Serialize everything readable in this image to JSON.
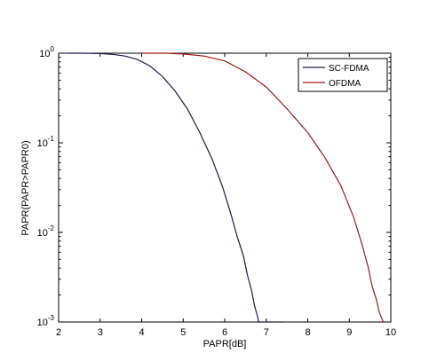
{
  "chart_data": {
    "type": "line",
    "title": "",
    "xlabel": "PAPR[dB]",
    "ylabel": "PAPR(PAPR>PAPR0)",
    "xlim": [
      2,
      10
    ],
    "ylim": [
      0.001,
      1
    ],
    "yscale": "log",
    "grid": false,
    "legend_position": "top-right",
    "x_ticks": [
      "2",
      "3",
      "4",
      "5",
      "6",
      "7",
      "8",
      "9",
      "10"
    ],
    "y_ticks": [
      {
        "value": 1,
        "base": "10",
        "exp": "0"
      },
      {
        "value": 0.1,
        "base": "10",
        "exp": "-1"
      },
      {
        "value": 0.01,
        "base": "10",
        "exp": "-2"
      },
      {
        "value": 0.001,
        "base": "10",
        "exp": "-3"
      }
    ],
    "series": [
      {
        "name": "SC-FDMA",
        "color": "#1a1a4a",
        "points": [
          [
            2.2,
            1.0
          ],
          [
            2.6,
            1.0
          ],
          [
            3.0,
            0.99
          ],
          [
            3.3,
            0.97
          ],
          [
            3.6,
            0.93
          ],
          [
            3.9,
            0.85
          ],
          [
            4.2,
            0.72
          ],
          [
            4.5,
            0.55
          ],
          [
            4.8,
            0.38
          ],
          [
            5.1,
            0.24
          ],
          [
            5.4,
            0.13
          ],
          [
            5.7,
            0.065
          ],
          [
            5.95,
            0.032
          ],
          [
            6.15,
            0.016
          ],
          [
            6.3,
            0.009
          ],
          [
            6.45,
            0.0055
          ],
          [
            6.55,
            0.0033
          ],
          [
            6.65,
            0.0022
          ],
          [
            6.72,
            0.0015
          ],
          [
            6.78,
            0.0012
          ],
          [
            6.82,
            0.001
          ],
          [
            7.4,
            0.001
          ]
        ]
      },
      {
        "name": "OFDMA",
        "color": "#a01818",
        "points": [
          [
            4.0,
            1.0
          ],
          [
            4.6,
            1.0
          ],
          [
            5.0,
            0.98
          ],
          [
            5.5,
            0.93
          ],
          [
            6.0,
            0.82
          ],
          [
            6.5,
            0.62
          ],
          [
            7.0,
            0.42
          ],
          [
            7.5,
            0.24
          ],
          [
            8.0,
            0.13
          ],
          [
            8.4,
            0.07
          ],
          [
            8.8,
            0.033
          ],
          [
            9.1,
            0.015
          ],
          [
            9.3,
            0.0075
          ],
          [
            9.45,
            0.0042
          ],
          [
            9.55,
            0.0025
          ],
          [
            9.65,
            0.0018
          ],
          [
            9.72,
            0.0013
          ],
          [
            9.78,
            0.0011
          ],
          [
            9.82,
            0.001
          ]
        ]
      }
    ]
  }
}
